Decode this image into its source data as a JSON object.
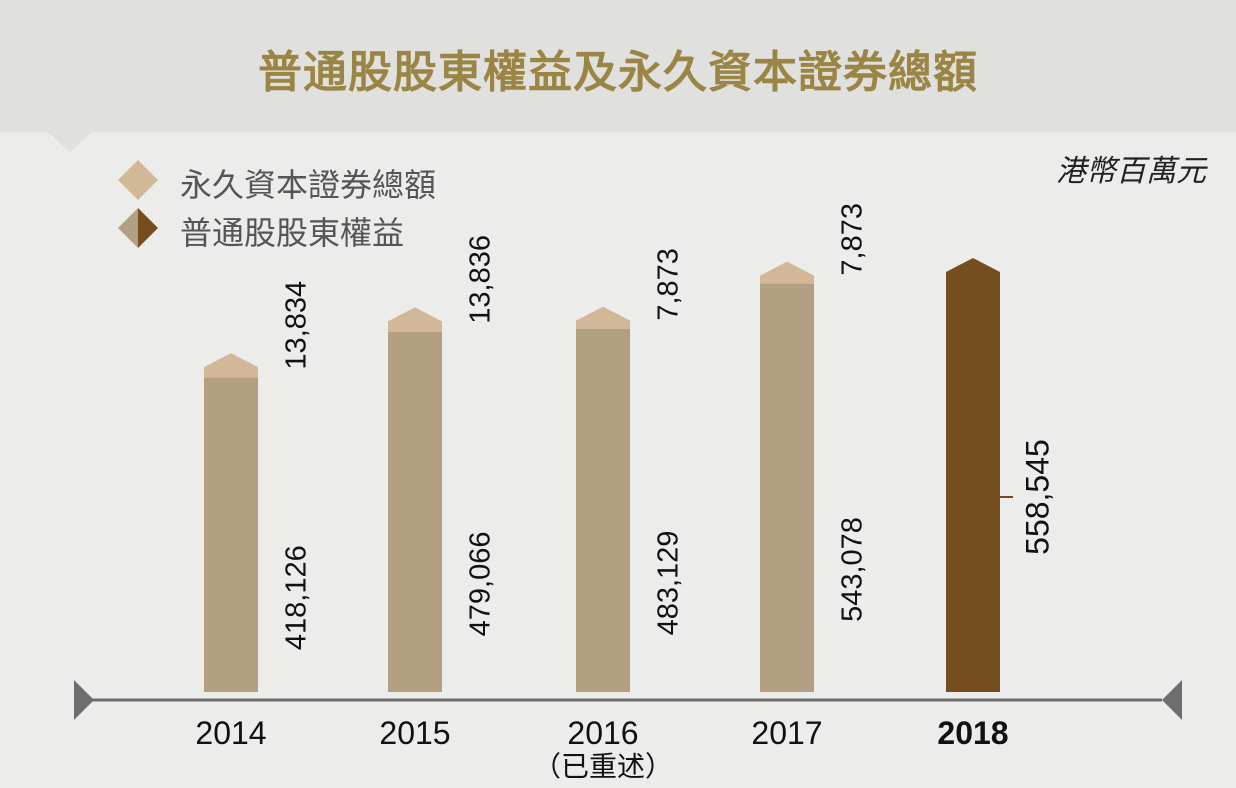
{
  "title": "普通股股東權益及永久資本證券總額",
  "unit": "港幣百萬元",
  "legend": {
    "perpetual": "永久資本證券總額",
    "equity": "普通股股東權益"
  },
  "colors": {
    "title": "#9a8544",
    "equity": "#b3a083",
    "perpetual": "#d2b899",
    "highlight": "#764d1e",
    "axis": "#6e6e6e"
  },
  "chart_data": {
    "type": "bar",
    "stacked": true,
    "categories": [
      "2014",
      "2015",
      "2016",
      "2017",
      "2018"
    ],
    "category_notes": [
      "",
      "",
      "（已重述）",
      "",
      ""
    ],
    "highlight_category": "2018",
    "series": [
      {
        "name": "普通股股東權益",
        "values": [
          418126,
          479066,
          483129,
          543078,
          558545
        ],
        "labels": [
          "418,126",
          "479,066",
          "483,129",
          "543,078",
          "558,545"
        ]
      },
      {
        "name": "永久資本證券總額",
        "values": [
          13834,
          13836,
          7873,
          7873,
          0
        ],
        "labels": [
          "13,834",
          "13,836",
          "7,873",
          "7,873",
          ""
        ]
      }
    ]
  }
}
